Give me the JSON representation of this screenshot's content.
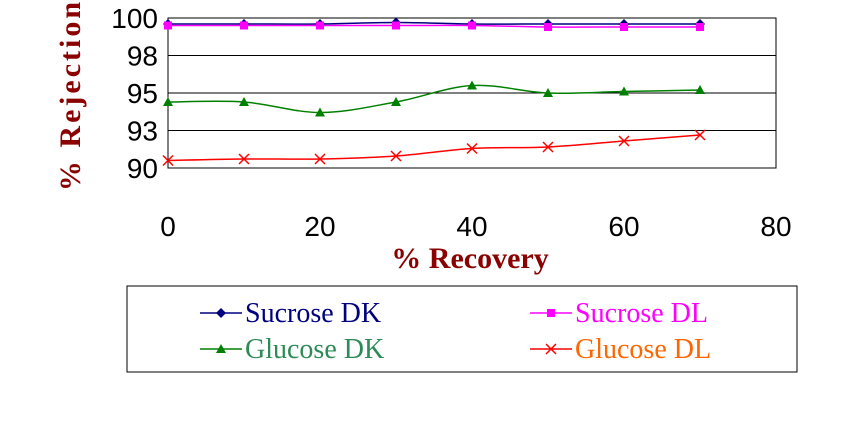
{
  "chart_data": {
    "type": "line",
    "title": "",
    "xlabel": "% Recovery",
    "ylabel": "% Rejection",
    "xlim": [
      0,
      80
    ],
    "ylim": [
      90,
      100
    ],
    "x_ticks": [
      "0",
      "20",
      "40",
      "60",
      "80"
    ],
    "y_ticks": [
      "90",
      "93",
      "95",
      "98",
      "100"
    ],
    "grid": "horizontal",
    "legend_position": "bottom",
    "colors": {
      "axis_title": "#8b0000",
      "grid": "#000000"
    },
    "series": [
      {
        "name": "Sucrose DK",
        "color": "#000080",
        "label_color": "#000080",
        "marker": "diamond",
        "x": [
          0,
          10,
          20,
          30,
          40,
          50,
          60,
          70
        ],
        "y": [
          99.6,
          99.6,
          99.6,
          99.7,
          99.6,
          99.6,
          99.6,
          99.6
        ]
      },
      {
        "name": "Sucrose DL",
        "color": "#ff00ff",
        "label_color": "#ff00ff",
        "marker": "square",
        "x": [
          0,
          10,
          20,
          30,
          40,
          50,
          60,
          70
        ],
        "y": [
          99.5,
          99.5,
          99.5,
          99.5,
          99.5,
          99.4,
          99.4,
          99.4
        ]
      },
      {
        "name": "Glucose DK",
        "color": "#008000",
        "label_color": "#2e8b57",
        "marker": "triangle",
        "x": [
          0,
          10,
          20,
          30,
          40,
          50,
          60,
          70
        ],
        "y": [
          94.4,
          94.4,
          93.7,
          94.4,
          95.5,
          95.0,
          95.1,
          95.2
        ]
      },
      {
        "name": "Glucose DL",
        "color": "#ff0000",
        "label_color": "#ff6600",
        "marker": "x",
        "x": [
          0,
          10,
          20,
          30,
          40,
          50,
          60,
          70
        ],
        "y": [
          90.5,
          90.6,
          90.6,
          90.8,
          91.3,
          91.4,
          91.8,
          92.2
        ]
      }
    ]
  }
}
